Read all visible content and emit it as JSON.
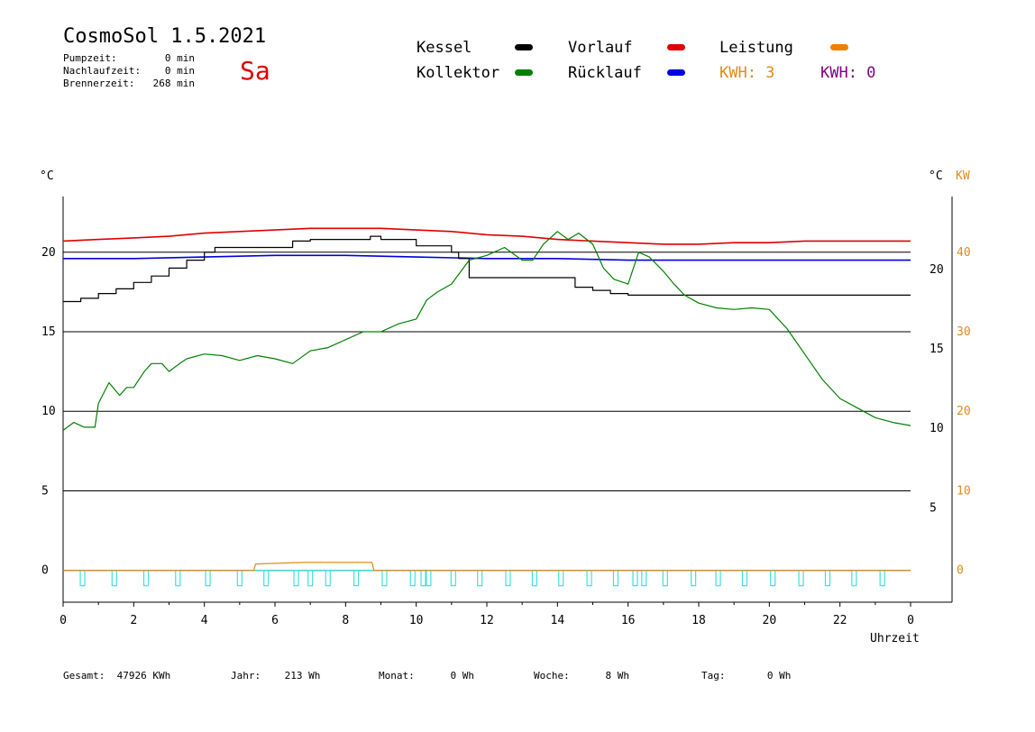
{
  "header": {
    "title": "CosmoSol 1.5.2021",
    "day": "Sa",
    "stats": [
      {
        "label": "Pumpzeit:",
        "value": "0 min"
      },
      {
        "label": "Nachlaufzeit:",
        "value": "0 min"
      },
      {
        "label": "Brennerzeit:",
        "value": "268 min"
      }
    ]
  },
  "legend": {
    "kessel": {
      "label": "Kessel",
      "color": "#000000"
    },
    "kollektor": {
      "label": "Kollektor",
      "color": "#008000"
    },
    "vorlauf": {
      "label": "Vorlauf",
      "color": "#e00000"
    },
    "ruecklauf": {
      "label": "Rücklauf",
      "color": "#0000e0"
    },
    "leistung": {
      "label": "Leistung",
      "color": "#f08000"
    },
    "kwh1": {
      "label": "KWH: 3",
      "color": "#e08a1e"
    },
    "kwh2": {
      "label": "KWH: 0",
      "color": "#800080"
    }
  },
  "footer": [
    {
      "label": "Gesamt:",
      "value": "47926 KWh"
    },
    {
      "label": "Jahr:",
      "value": "213 Wh"
    },
    {
      "label": "Monat:",
      "value": "0 Wh"
    },
    {
      "label": "Woche:",
      "value": "8 Wh"
    },
    {
      "label": "Tag:",
      "value": "0 Wh"
    }
  ],
  "chart_data": {
    "type": "line",
    "xlabel": "Uhrzeit",
    "x_ticks": [
      "0",
      "2",
      "4",
      "6",
      "8",
      "10",
      "12",
      "14",
      "16",
      "18",
      "20",
      "22",
      "0"
    ],
    "y_left": {
      "unit": "°C",
      "ticks": [
        "0",
        "5",
        "10",
        "15",
        "20"
      ],
      "ylim": [
        -2,
        23.5
      ]
    },
    "y_right_temp": {
      "unit": "°C",
      "ticks": [
        "5",
        "10",
        "15",
        "20"
      ]
    },
    "y_right_power": {
      "unit": "KW",
      "ticks": [
        "0",
        "10",
        "20",
        "30",
        "40"
      ],
      "color": "#e08a1e"
    },
    "grid": true,
    "series": [
      {
        "name": "Vorlauf",
        "color": "#e00000",
        "x": [
          0,
          1,
          2,
          3,
          4,
          5,
          6,
          7,
          8,
          9,
          10,
          11,
          12,
          13,
          14,
          15,
          16,
          17,
          18,
          19,
          20,
          21,
          22,
          23,
          24
        ],
        "y": [
          20.7,
          20.8,
          20.9,
          21.0,
          21.2,
          21.3,
          21.4,
          21.5,
          21.5,
          21.5,
          21.4,
          21.3,
          21.1,
          21.0,
          20.8,
          20.7,
          20.6,
          20.5,
          20.5,
          20.6,
          20.6,
          20.7,
          20.7,
          20.7,
          20.7
        ]
      },
      {
        "name": "Rücklauf",
        "color": "#0000e0",
        "x": [
          0,
          2,
          4,
          6,
          8,
          10,
          12,
          14,
          16,
          18,
          20,
          22,
          24
        ],
        "y": [
          19.6,
          19.6,
          19.7,
          19.8,
          19.8,
          19.7,
          19.6,
          19.6,
          19.5,
          19.5,
          19.5,
          19.5,
          19.5
        ]
      },
      {
        "name": "Kessel",
        "color": "#000000",
        "x": [
          0,
          0.5,
          1,
          1.5,
          2,
          2.5,
          3,
          3.5,
          4,
          4.3,
          6,
          6.5,
          7,
          8.5,
          8.7,
          9,
          10,
          11,
          11.2,
          11.5,
          14.2,
          14.5,
          15,
          15.5,
          16,
          24
        ],
        "y": [
          16.9,
          17.1,
          17.4,
          17.7,
          18.1,
          18.5,
          19.0,
          19.5,
          20.0,
          20.3,
          20.3,
          20.7,
          20.8,
          20.8,
          21.0,
          20.8,
          20.4,
          20.0,
          19.6,
          18.4,
          18.4,
          17.8,
          17.6,
          17.4,
          17.3,
          17.3
        ]
      },
      {
        "name": "Kollektor",
        "color": "#008000",
        "x": [
          0,
          0.3,
          0.6,
          0.9,
          1.0,
          1.3,
          1.6,
          1.8,
          2.0,
          2.3,
          2.5,
          2.8,
          3.0,
          3.3,
          3.5,
          4.0,
          4.5,
          5.0,
          5.5,
          6.0,
          6.5,
          7.0,
          7.5,
          8.0,
          8.5,
          9.0,
          9.5,
          10.0,
          10.3,
          10.6,
          11.0,
          11.5,
          12.0,
          12.5,
          13.0,
          13.3,
          13.6,
          14.0,
          14.3,
          14.6,
          15.0,
          15.3,
          15.6,
          16.0,
          16.3,
          16.6,
          17.0,
          17.3,
          17.6,
          18.0,
          18.5,
          19.0,
          19.5,
          20.0,
          20.5,
          21.0,
          21.5,
          22.0,
          22.5,
          23.0,
          23.5,
          24.0
        ],
        "y": [
          8.8,
          9.3,
          9.0,
          9.0,
          10.5,
          11.8,
          11.0,
          11.5,
          11.5,
          12.5,
          13.0,
          13.0,
          12.5,
          13.0,
          13.3,
          13.6,
          13.5,
          13.2,
          13.5,
          13.3,
          13.0,
          13.8,
          14.0,
          14.5,
          15.0,
          15.0,
          15.5,
          15.8,
          17.0,
          17.5,
          18.0,
          19.5,
          19.8,
          20.3,
          19.5,
          19.5,
          20.5,
          21.3,
          20.8,
          21.2,
          20.5,
          19.0,
          18.3,
          18.0,
          20.0,
          19.7,
          18.8,
          18.0,
          17.3,
          16.8,
          16.5,
          16.4,
          16.5,
          16.4,
          15.2,
          13.6,
          12.0,
          10.8,
          10.2,
          9.6,
          9.3,
          9.1
        ]
      },
      {
        "name": "Leistung",
        "color": "#e08a1e",
        "x": [
          0,
          5.4,
          5.45,
          6.8,
          7.2,
          8.75,
          8.8,
          24
        ],
        "y": [
          0,
          0,
          0.4,
          0.5,
          0.5,
          0.5,
          0,
          0
        ]
      }
    ],
    "pump_pulses_x": [
      0.55,
      1.45,
      2.35,
      3.25,
      4.1,
      5.0,
      5.75,
      6.6,
      7.0,
      7.5,
      8.3,
      9.1,
      9.9,
      10.2,
      10.35,
      11.05,
      11.8,
      12.6,
      13.35,
      14.1,
      14.9,
      15.65,
      16.2,
      16.45,
      17.05,
      17.85,
      18.55,
      19.3,
      20.1,
      20.9,
      21.65,
      22.4,
      23.2
    ]
  }
}
